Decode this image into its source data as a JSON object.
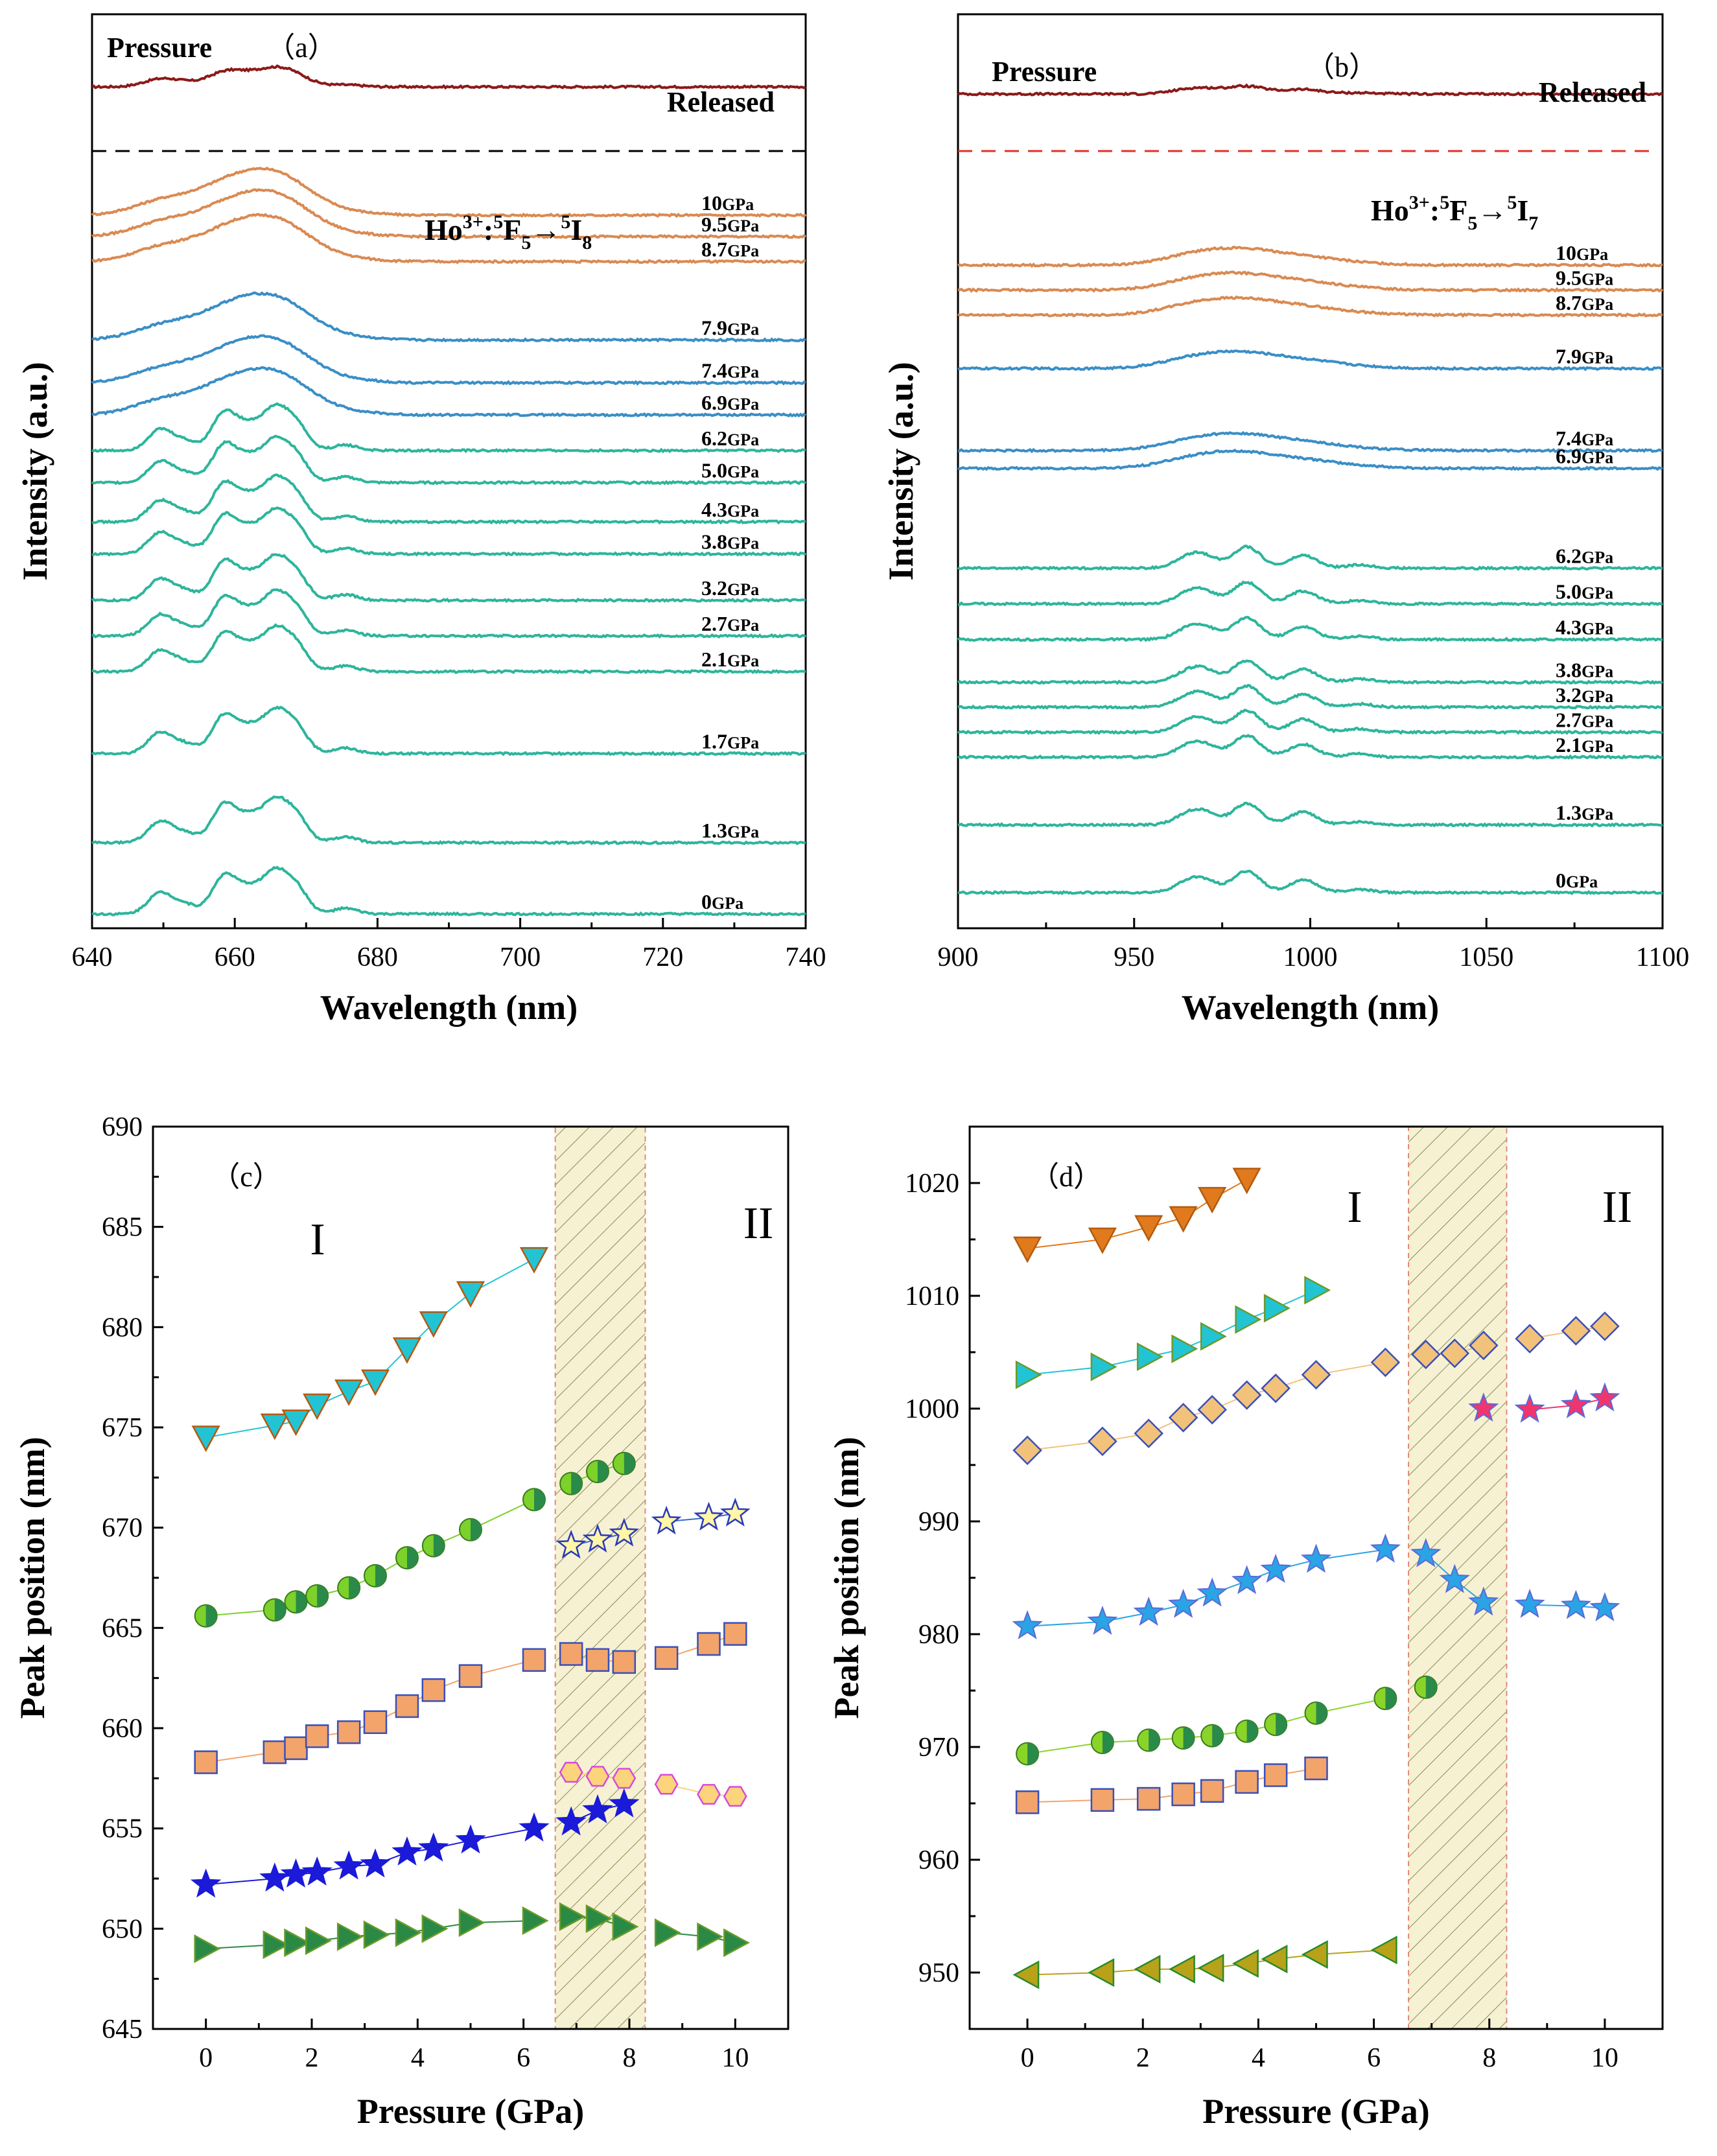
{
  "chart_data": [
    {
      "id": "a",
      "type": "line",
      "panel_label": "（a）",
      "title": "Ho³⁺:⁵F₅→⁵I₈",
      "title_parts": {
        "ion": "Ho",
        "ion_sup": "3+",
        "arrow": ":",
        "from_sup": "5",
        "from": "F",
        "from_sub": "5",
        "to_sup": "5",
        "to": "I",
        "to_sub": "8",
        "arrow_sym": "→"
      },
      "xlabel": "Wavelength (nm)",
      "ylabel": "Intensity (a.u.)",
      "xlim": [
        640,
        740
      ],
      "xticks": [
        640,
        660,
        680,
        700,
        720,
        740
      ],
      "pressure_text": "Pressure",
      "released_text": "Released",
      "peaks": [
        649.5,
        653,
        658.5,
        662,
        665.5,
        668.5,
        675.5
      ],
      "series": [
        {
          "name": "Released",
          "label_num": "",
          "color": "#8b1a1a",
          "level": 23.6
        },
        {
          "name": "10GPa",
          "label_num": "10",
          "color": "#d98a52",
          "level": 20.0
        },
        {
          "name": "9.5GPa",
          "label_num": "9.5",
          "color": "#d98a52",
          "level": 19.4
        },
        {
          "name": "8.7GPa",
          "label_num": "8.7",
          "color": "#d98a52",
          "level": 18.7
        },
        {
          "name": "7.9GPa",
          "label_num": "7.9",
          "color": "#3a8ec6",
          "level": 16.5
        },
        {
          "name": "7.4GPa",
          "label_num": "7.4",
          "color": "#3a8ec6",
          "level": 15.3
        },
        {
          "name": "6.9GPa",
          "label_num": "6.9",
          "color": "#3a8ec6",
          "level": 14.4
        },
        {
          "name": "6.2GPa",
          "label_num": "6.2",
          "color": "#2db59c",
          "level": 13.4
        },
        {
          "name": "5.0GPa",
          "label_num": "5.0",
          "color": "#2db59c",
          "level": 12.5
        },
        {
          "name": "4.3GPa",
          "label_num": "4.3",
          "color": "#2db59c",
          "level": 11.4
        },
        {
          "name": "3.8GPa",
          "label_num": "3.8",
          "color": "#2db59c",
          "level": 10.5
        },
        {
          "name": "3.2GPa",
          "label_num": "3.2",
          "color": "#2db59c",
          "level": 9.2
        },
        {
          "name": "2.7GPa",
          "label_num": "2.7",
          "color": "#2db59c",
          "level": 8.2
        },
        {
          "name": "2.1GPa",
          "label_num": "2.1",
          "color": "#2db59c",
          "level": 7.2
        },
        {
          "name": "1.7GPa",
          "label_num": "1.7",
          "color": "#2db59c",
          "level": 4.9
        },
        {
          "name": "1.3GPa",
          "label_num": "1.3",
          "color": "#2db59c",
          "level": 2.4
        },
        {
          "name": "0GPa",
          "label_num": "0",
          "color": "#2db59c",
          "level": 0.4
        }
      ]
    },
    {
      "id": "b",
      "type": "line",
      "panel_label": "（b）",
      "title": "Ho³⁺:⁵F₅→⁵I₇",
      "title_parts": {
        "ion": "Ho",
        "ion_sup": "3+",
        "arrow": ":",
        "from_sup": "5",
        "from": "F",
        "from_sub": "5",
        "to_sup": "5",
        "to": "I",
        "to_sub": "7",
        "arrow_sym": "→"
      },
      "xlabel": "Wavelength (nm)",
      "ylabel": "Intensity (a.u.)",
      "xlim": [
        900,
        1100
      ],
      "xticks": [
        900,
        950,
        1000,
        1050,
        1100
      ],
      "pressure_text": "Pressure",
      "released_text": "Released",
      "peaks": [
        965,
        970,
        982,
        998,
        1014
      ],
      "series": [
        {
          "name": "Released",
          "label_num": "",
          "color": "#8b1a1a",
          "level": 23.4
        },
        {
          "name": "10GPa",
          "label_num": "10",
          "color": "#d98a52",
          "level": 18.6
        },
        {
          "name": "9.5GPa",
          "label_num": "9.5",
          "color": "#d98a52",
          "level": 17.9
        },
        {
          "name": "8.7GPa",
          "label_num": "8.7",
          "color": "#d98a52",
          "level": 17.2
        },
        {
          "name": "7.9GPa",
          "label_num": "7.9",
          "color": "#3a8ec6",
          "level": 15.7
        },
        {
          "name": "7.4GPa",
          "label_num": "7.4",
          "color": "#3a8ec6",
          "level": 13.4
        },
        {
          "name": "6.9GPa",
          "label_num": "6.9",
          "color": "#3a8ec6",
          "level": 12.9
        },
        {
          "name": "6.2GPa",
          "label_num": "6.2",
          "color": "#2db59c",
          "level": 10.1
        },
        {
          "name": "5.0GPa",
          "label_num": "5.0",
          "color": "#2db59c",
          "level": 9.1
        },
        {
          "name": "4.3GPa",
          "label_num": "4.3",
          "color": "#2db59c",
          "level": 8.1
        },
        {
          "name": "3.8GPa",
          "label_num": "3.8",
          "color": "#2db59c",
          "level": 6.9
        },
        {
          "name": "3.2GPa",
          "label_num": "3.2",
          "color": "#2db59c",
          "level": 6.2
        },
        {
          "name": "2.7GPa",
          "label_num": "2.7",
          "color": "#2db59c",
          "level": 5.5
        },
        {
          "name": "2.1GPa",
          "label_num": "2.1",
          "color": "#2db59c",
          "level": 4.8
        },
        {
          "name": "1.3GPa",
          "label_num": "1.3",
          "color": "#2db59c",
          "level": 2.9
        },
        {
          "name": "0GPa",
          "label_num": "0",
          "color": "#2db59c",
          "level": 1.0
        }
      ]
    },
    {
      "id": "c",
      "type": "scatter",
      "panel_label": "（c）",
      "xlabel": "Pressure (GPa)",
      "ylabel": "Peak position (nm)",
      "xlim": [
        -1,
        11
      ],
      "ylim": [
        645,
        690
      ],
      "xticks": [
        0,
        2,
        4,
        6,
        8,
        10
      ],
      "yticks": [
        645,
        650,
        655,
        660,
        665,
        670,
        675,
        680,
        685,
        690
      ],
      "phase_labels": [
        "I",
        "II"
      ],
      "transition_region": [
        6.6,
        8.3
      ],
      "series": [
        {
          "name": "c1",
          "marker": "tri-down",
          "color": "#22c4d4",
          "points": [
            [
              0,
              674.5
            ],
            [
              1.3,
              675.1
            ],
            [
              1.7,
              675.3
            ],
            [
              2.1,
              676.1
            ],
            [
              2.7,
              676.8
            ],
            [
              3.2,
              677.3
            ],
            [
              3.8,
              678.9
            ],
            [
              4.3,
              680.2
            ],
            [
              5.0,
              681.7
            ],
            [
              6.2,
              683.4
            ]
          ]
        },
        {
          "name": "c2",
          "marker": "half-circle",
          "color": "#7cd12a",
          "points": [
            [
              0,
              665.6
            ],
            [
              1.3,
              665.9
            ],
            [
              1.7,
              666.3
            ],
            [
              2.1,
              666.6
            ],
            [
              2.7,
              667.0
            ],
            [
              3.2,
              667.6
            ],
            [
              3.8,
              668.5
            ],
            [
              4.3,
              669.1
            ],
            [
              5.0,
              669.9
            ],
            [
              6.2,
              671.4
            ],
            [
              6.9,
              672.2
            ],
            [
              7.4,
              672.8
            ],
            [
              7.9,
              673.2
            ]
          ]
        },
        {
          "name": "c3",
          "marker": "star-open",
          "color": "#fff6a8",
          "points": [
            [
              6.9,
              669.1
            ],
            [
              7.4,
              669.4
            ],
            [
              7.9,
              669.7
            ],
            [
              8.7,
              670.3
            ],
            [
              9.5,
              670.5
            ],
            [
              10.0,
              670.7
            ]
          ]
        },
        {
          "name": "c4",
          "marker": "square",
          "color": "#f2a46a",
          "points": [
            [
              0,
              658.3
            ],
            [
              1.3,
              658.8
            ],
            [
              1.7,
              659.0
            ],
            [
              2.1,
              659.6
            ],
            [
              2.7,
              659.8
            ],
            [
              3.2,
              660.3
            ],
            [
              3.8,
              661.1
            ],
            [
              4.3,
              661.9
            ],
            [
              5.0,
              662.6
            ],
            [
              6.2,
              663.4
            ],
            [
              6.9,
              663.7
            ],
            [
              7.4,
              663.4
            ],
            [
              7.9,
              663.3
            ],
            [
              8.7,
              663.5
            ],
            [
              9.5,
              664.2
            ],
            [
              10.0,
              664.7
            ]
          ]
        },
        {
          "name": "c5",
          "marker": "hexagon",
          "color": "#fbd47c",
          "points": [
            [
              6.9,
              657.8
            ],
            [
              7.4,
              657.6
            ],
            [
              7.9,
              657.5
            ],
            [
              8.7,
              657.2
            ],
            [
              9.5,
              656.7
            ],
            [
              10.0,
              656.6
            ]
          ]
        },
        {
          "name": "c6",
          "marker": "star",
          "color": "#1a1ad8",
          "points": [
            [
              0,
              652.2
            ],
            [
              1.3,
              652.5
            ],
            [
              1.7,
              652.7
            ],
            [
              2.1,
              652.8
            ],
            [
              2.7,
              653.1
            ],
            [
              3.2,
              653.2
            ],
            [
              3.8,
              653.8
            ],
            [
              4.3,
              654.0
            ],
            [
              5.0,
              654.4
            ],
            [
              6.2,
              655.0
            ],
            [
              6.9,
              655.3
            ],
            [
              7.4,
              655.9
            ],
            [
              7.9,
              656.2
            ]
          ]
        },
        {
          "name": "c7",
          "marker": "tri-right",
          "color": "#2a8a45",
          "points": [
            [
              0,
              649.0
            ],
            [
              1.3,
              649.2
            ],
            [
              1.7,
              649.3
            ],
            [
              2.1,
              649.4
            ],
            [
              2.7,
              649.6
            ],
            [
              3.2,
              649.7
            ],
            [
              3.8,
              649.8
            ],
            [
              4.3,
              650.0
            ],
            [
              5.0,
              650.3
            ],
            [
              6.2,
              650.4
            ],
            [
              6.9,
              650.6
            ],
            [
              7.4,
              650.5
            ],
            [
              7.9,
              650.1
            ],
            [
              8.7,
              649.8
            ],
            [
              9.5,
              649.6
            ],
            [
              10.0,
              649.3
            ]
          ]
        }
      ]
    },
    {
      "id": "d",
      "type": "scatter",
      "panel_label": "（d）",
      "xlabel": "Pressure (GPa)",
      "ylabel": "Peak position (nm)",
      "xlim": [
        -1,
        11
      ],
      "ylim": [
        945,
        1025
      ],
      "xticks": [
        0,
        2,
        4,
        6,
        8,
        10
      ],
      "yticks": [
        950,
        960,
        970,
        980,
        990,
        1000,
        1010,
        1020
      ],
      "phase_labels": [
        "I",
        "II"
      ],
      "transition_region": [
        6.6,
        8.3
      ],
      "series": [
        {
          "name": "d1",
          "marker": "tri-down",
          "color": "#e07a1c",
          "points": [
            [
              0,
              1014.2
            ],
            [
              1.3,
              1015.0
            ],
            [
              2.1,
              1016.1
            ],
            [
              2.7,
              1016.9
            ],
            [
              3.2,
              1018.6
            ],
            [
              3.8,
              1020.3
            ]
          ]
        },
        {
          "name": "d2",
          "marker": "tri-right",
          "color": "#22c4d4",
          "points": [
            [
              0,
              1003.0
            ],
            [
              1.3,
              1003.7
            ],
            [
              2.1,
              1004.6
            ],
            [
              2.7,
              1005.3
            ],
            [
              3.2,
              1006.4
            ],
            [
              3.8,
              1007.9
            ],
            [
              4.3,
              1008.9
            ],
            [
              5.0,
              1010.5
            ]
          ]
        },
        {
          "name": "d3",
          "marker": "diamond",
          "color": "#f2c27a",
          "points": [
            [
              0,
              996.3
            ],
            [
              1.3,
              997.1
            ],
            [
              2.1,
              997.8
            ],
            [
              2.7,
              999.2
            ],
            [
              3.2,
              999.9
            ],
            [
              3.8,
              1001.2
            ],
            [
              4.3,
              1001.8
            ],
            [
              5.0,
              1003.0
            ],
            [
              6.2,
              1004.1
            ],
            [
              6.9,
              1004.8
            ],
            [
              7.4,
              1004.9
            ],
            [
              7.9,
              1005.6
            ],
            [
              8.7,
              1006.2
            ],
            [
              9.5,
              1006.9
            ],
            [
              10.0,
              1007.3
            ]
          ]
        },
        {
          "name": "d4",
          "marker": "star",
          "color": "#f0356e",
          "points": [
            [
              7.9,
              1000.0
            ],
            [
              8.7,
              999.9
            ],
            [
              9.5,
              1000.3
            ],
            [
              10.0,
              1000.9
            ]
          ]
        },
        {
          "name": "d5",
          "marker": "star",
          "color": "#2aa4e4",
          "points": [
            [
              0,
              980.7
            ],
            [
              1.3,
              981.1
            ],
            [
              2.1,
              981.9
            ],
            [
              2.7,
              982.6
            ],
            [
              3.2,
              983.6
            ],
            [
              3.8,
              984.7
            ],
            [
              4.3,
              985.7
            ],
            [
              5.0,
              986.6
            ],
            [
              6.2,
              987.5
            ],
            [
              6.9,
              987.1
            ],
            [
              7.4,
              984.8
            ],
            [
              7.9,
              982.8
            ],
            [
              8.7,
              982.6
            ],
            [
              9.5,
              982.5
            ],
            [
              10.0,
              982.3
            ]
          ]
        },
        {
          "name": "d6",
          "marker": "half-circle",
          "color": "#8ad42a",
          "points": [
            [
              0,
              969.4
            ],
            [
              1.3,
              970.4
            ],
            [
              2.1,
              970.6
            ],
            [
              2.7,
              970.8
            ],
            [
              3.2,
              971.0
            ],
            [
              3.8,
              971.4
            ],
            [
              4.3,
              972.0
            ],
            [
              5.0,
              973.0
            ],
            [
              6.2,
              974.3
            ],
            [
              6.9,
              975.3
            ]
          ]
        },
        {
          "name": "d7",
          "marker": "square",
          "color": "#f2a46a",
          "points": [
            [
              0,
              965.1
            ],
            [
              1.3,
              965.3
            ],
            [
              2.1,
              965.4
            ],
            [
              2.7,
              965.8
            ],
            [
              3.2,
              966.1
            ],
            [
              3.8,
              966.9
            ],
            [
              4.3,
              967.5
            ],
            [
              5.0,
              968.1
            ]
          ]
        },
        {
          "name": "d8",
          "marker": "tri-left",
          "color": "#b8a21a",
          "points": [
            [
              0,
              949.8
            ],
            [
              1.3,
              950.0
            ],
            [
              2.1,
              950.3
            ],
            [
              2.7,
              950.3
            ],
            [
              3.2,
              950.4
            ],
            [
              3.8,
              950.8
            ],
            [
              4.3,
              951.2
            ],
            [
              5.0,
              951.6
            ],
            [
              6.2,
              952.0
            ]
          ]
        }
      ]
    }
  ]
}
